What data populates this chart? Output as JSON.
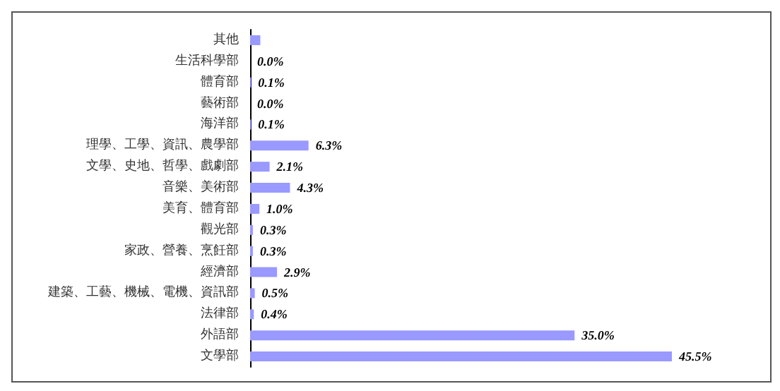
{
  "chart_data": {
    "type": "bar",
    "orientation": "horizontal",
    "categories": [
      "其他",
      "生活科學部",
      "體育部",
      "藝術部",
      "海洋部",
      "理學、工學、資訊、農學部",
      "文學、史地、哲學、戲劇部",
      "音樂、美術部",
      "美育、體育部",
      "觀光部",
      "家政、營養、烹飪部",
      "經濟部",
      "建築、工藝、機械、電機、資訊部",
      "法律部",
      "外語部",
      "文學部"
    ],
    "values": [
      1.1,
      0.0,
      0.1,
      0.0,
      0.1,
      6.3,
      2.1,
      4.3,
      1.0,
      0.3,
      0.3,
      2.9,
      0.5,
      0.4,
      35.0,
      45.5
    ],
    "value_labels": [
      null,
      "0.0%",
      "0.1%",
      "0.0%",
      "0.1%",
      "6.3%",
      "2.1%",
      "4.3%",
      "1.0%",
      "0.3%",
      "0.3%",
      "2.9%",
      "0.5%",
      "0.4%",
      "35.0%",
      "45.5%"
    ],
    "color": "#9999ff",
    "tick_labels": "y",
    "grid": false
  }
}
